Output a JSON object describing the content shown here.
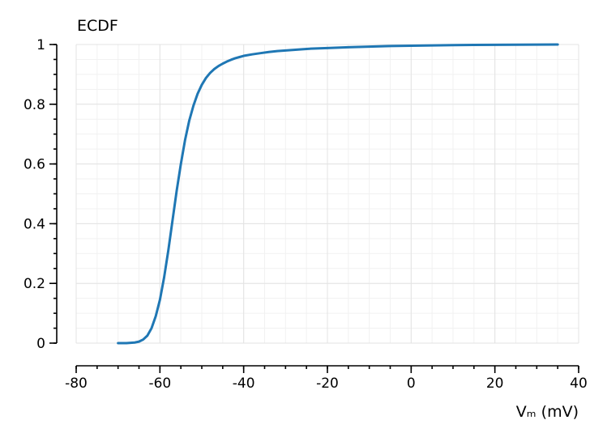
{
  "chart_data": {
    "type": "line",
    "title": "ECDF",
    "xlabel": "Vₘ (mV)",
    "ylabel": "",
    "xlim": [
      -80,
      40
    ],
    "ylim": [
      0,
      1
    ],
    "x_ticks": [
      -80,
      -60,
      -40,
      -20,
      0,
      20,
      40
    ],
    "x_tick_labels": [
      "-80",
      "-60",
      "-40",
      "-20",
      "0",
      "20",
      "40"
    ],
    "y_ticks": [
      0,
      0.2,
      0.4,
      0.6,
      0.8,
      1
    ],
    "y_tick_labels": [
      "0",
      "0.2",
      "0.4",
      "0.6",
      "0.8",
      "1"
    ],
    "grid": true,
    "color": "#1f77b4",
    "series": [
      {
        "x": [
          -70,
          -68,
          -66,
          -65,
          -64,
          -63,
          -62,
          -61,
          -60,
          -59,
          -58,
          -57,
          -56,
          -55,
          -54,
          -53,
          -52,
          -51,
          -50,
          -49,
          -48,
          -47,
          -46,
          -45,
          -44,
          -43,
          -42,
          -41,
          -40,
          -38,
          -36,
          -34,
          -32,
          -30,
          -28,
          -26,
          -24,
          -22,
          -20,
          -15,
          -10,
          -5,
          0,
          5,
          10,
          15,
          20,
          25,
          30,
          35
        ],
        "y": [
          0.0,
          0.0,
          0.002,
          0.005,
          0.012,
          0.025,
          0.05,
          0.09,
          0.145,
          0.22,
          0.31,
          0.41,
          0.51,
          0.6,
          0.68,
          0.745,
          0.795,
          0.835,
          0.865,
          0.888,
          0.905,
          0.918,
          0.928,
          0.936,
          0.943,
          0.949,
          0.954,
          0.958,
          0.962,
          0.967,
          0.971,
          0.975,
          0.978,
          0.98,
          0.982,
          0.984,
          0.986,
          0.987,
          0.988,
          0.991,
          0.993,
          0.995,
          0.996,
          0.997,
          0.998,
          0.9985,
          0.999,
          0.9993,
          0.9996,
          1.0
        ]
      }
    ]
  }
}
